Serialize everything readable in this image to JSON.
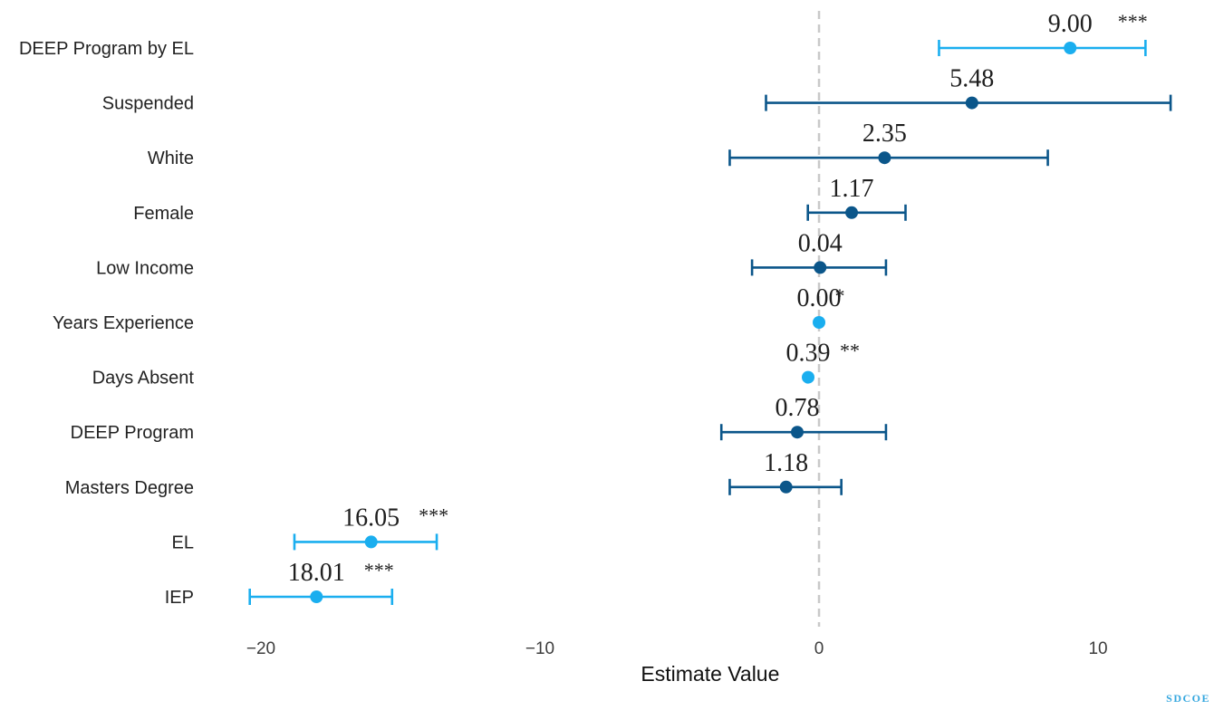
{
  "chart_data": {
    "type": "scatter",
    "xlabel": "Estimate Value",
    "xlim": [
      -21.9,
      14.1
    ],
    "xticks": [
      -20,
      -10,
      0,
      10
    ],
    "xtick_labels": [
      "−20",
      "−10",
      "0",
      "10"
    ],
    "reference_line": {
      "x": 0,
      "style": "dashed",
      "color": "#c9c9c9"
    },
    "grid": false,
    "legend": "none",
    "colors": {
      "significant": "#1aaeef",
      "not_significant": "#0b568a"
    },
    "points": [
      {
        "term": "DEEP Program by EL",
        "estimate": 9.0,
        "ci": [
          4.3,
          11.7
        ],
        "label": "9.00",
        "stars": "***",
        "significant": true
      },
      {
        "term": "Suspended",
        "estimate": 5.48,
        "ci": [
          -1.9,
          12.6
        ],
        "label": "5.48",
        "significant": false
      },
      {
        "term": "White",
        "estimate": 2.35,
        "ci": [
          -3.2,
          8.2
        ],
        "label": "2.35",
        "significant": false
      },
      {
        "term": "Female",
        "estimate": 1.17,
        "ci": [
          -0.4,
          3.1
        ],
        "label": "1.17",
        "significant": false
      },
      {
        "term": "Low Income",
        "estimate": 0.04,
        "ci": [
          -2.4,
          2.4
        ],
        "label": "0.04",
        "significant": false
      },
      {
        "term": "Years Experience",
        "estimate": 0.0,
        "ci": null,
        "label": "0.00",
        "stars": "*",
        "significant": true
      },
      {
        "term": "Days Absent",
        "estimate": -0.39,
        "ci": null,
        "label": "0.39",
        "stars": "**",
        "significant": true
      },
      {
        "term": "DEEP Program",
        "estimate": -0.78,
        "ci": [
          -3.5,
          2.4
        ],
        "label": "0.78",
        "significant": false
      },
      {
        "term": "Masters Degree",
        "estimate": -1.18,
        "ci": [
          -3.2,
          0.8
        ],
        "label": "1.18",
        "significant": false
      },
      {
        "term": "EL",
        "estimate": -16.05,
        "ci": [
          -18.8,
          -13.7
        ],
        "label": "16.05",
        "stars": "***",
        "significant": true
      },
      {
        "term": "IEP",
        "estimate": -18.01,
        "ci": [
          -20.4,
          -15.3
        ],
        "label": "18.01",
        "stars": "***",
        "significant": true
      }
    ]
  },
  "watermark": "SDCOE"
}
